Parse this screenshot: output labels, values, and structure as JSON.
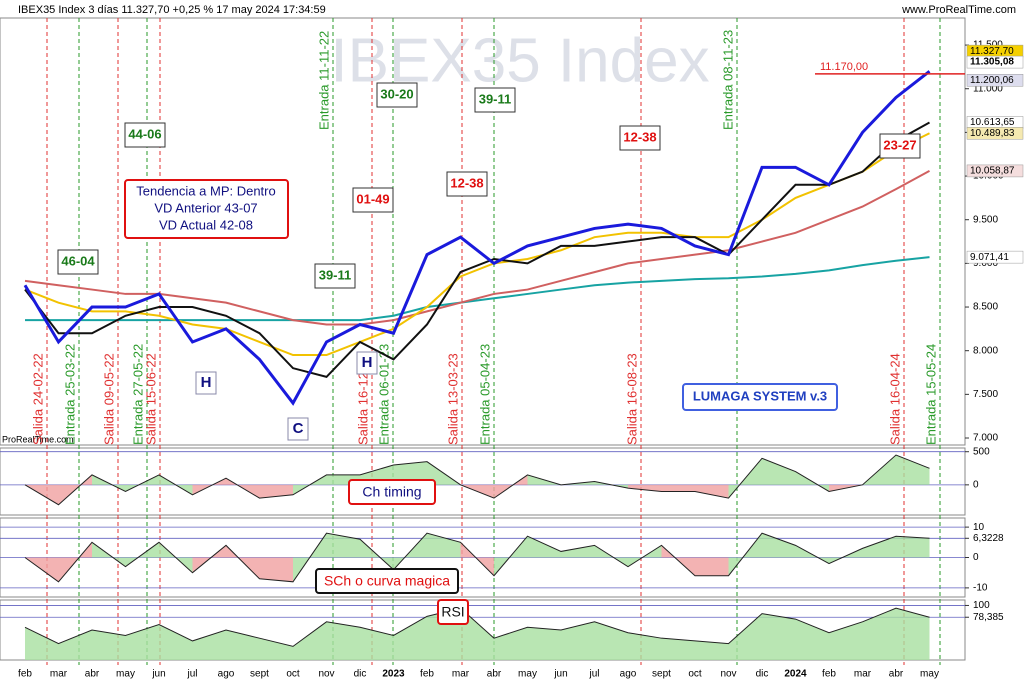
{
  "header": {
    "title": "IBEX35 Index 3 días 11.327,70 +0,25 % 17 may 2024 17:34:59",
    "site": "www.ProRealTime.com",
    "watermark": "IBEX35 Index",
    "credit": "ProRealTime.com"
  },
  "chart_data": [
    {
      "type": "line",
      "categories": [
        "feb",
        "mar",
        "abr",
        "may",
        "jun",
        "jul",
        "ago",
        "sept",
        "oct",
        "nov",
        "dic",
        "2023",
        "feb",
        "mar",
        "abr",
        "may",
        "jun",
        "jul",
        "ago",
        "sept",
        "oct",
        "nov",
        "dic",
        "2024",
        "feb",
        "mar",
        "abr",
        "may"
      ],
      "ylim": [
        6920,
        11810
      ],
      "yticks": [
        {
          "value": 11500,
          "label": "11.500"
        },
        {
          "value": 11000,
          "label": "11.000"
        },
        {
          "value": 10500,
          "label": "10.500"
        },
        {
          "value": 10000,
          "label": "10.000"
        },
        {
          "value": 9500,
          "label": "9.500"
        },
        {
          "value": 9000,
          "label": "9.000"
        },
        {
          "value": 8500,
          "label": "8.500"
        },
        {
          "value": 8000,
          "label": "8.000"
        },
        {
          "value": 7500,
          "label": "7.500"
        },
        {
          "value": 7000,
          "label": "7.000"
        }
      ],
      "series": [
        {
          "color": "#17a3a3",
          "values": [
            8350,
            8350,
            8350,
            8350,
            8350,
            8350,
            8350,
            8350,
            8350,
            8350,
            8350,
            8400,
            8500,
            8550,
            8600,
            8650,
            8700,
            8750,
            8780,
            8800,
            8820,
            8830,
            8850,
            8880,
            8920,
            8980,
            9030,
            9071.41
          ]
        },
        {
          "color": "#d06060",
          "values": [
            8800,
            8750,
            8700,
            8650,
            8650,
            8600,
            8550,
            8450,
            8350,
            8300,
            8300,
            8350,
            8450,
            8550,
            8650,
            8700,
            8800,
            8900,
            9000,
            9050,
            9100,
            9150,
            9250,
            9350,
            9500,
            9650,
            9850,
            10058.87
          ]
        },
        {
          "color": "#f2c200",
          "values": [
            8700,
            8550,
            8450,
            8450,
            8400,
            8300,
            8250,
            8100,
            7950,
            7950,
            8100,
            8250,
            8500,
            8850,
            9000,
            9050,
            9150,
            9300,
            9350,
            9350,
            9300,
            9300,
            9500,
            9750,
            9900,
            10050,
            10300,
            10489.83
          ]
        },
        {
          "color": "#111111",
          "values": [
            8700,
            8200,
            8200,
            8400,
            8500,
            8500,
            8400,
            8200,
            7800,
            7700,
            8100,
            7900,
            8300,
            8900,
            9050,
            9000,
            9200,
            9200,
            9250,
            9300,
            9300,
            9100,
            9500,
            9900,
            9900,
            10050,
            10400,
            10613.65
          ]
        },
        {
          "color": "#1a1adc",
          "values": [
            8750,
            8100,
            8500,
            8500,
            8650,
            8100,
            8250,
            7900,
            7400,
            8100,
            8300,
            8200,
            9100,
            9300,
            9000,
            9200,
            9300,
            9400,
            9450,
            9400,
            9200,
            9100,
            10100,
            10100,
            9900,
            10500,
            10900,
            11200.06
          ]
        }
      ],
      "price_labels": [
        {
          "value": 11327.7,
          "label": "11.327,70"
        },
        {
          "value": 11305.08,
          "label": "11.305,08"
        },
        {
          "value": 11200.06,
          "label": "11.200,06"
        },
        {
          "value": 10613.65,
          "label": "10.613,65"
        },
        {
          "value": 10489.83,
          "label": "10.489,83"
        },
        {
          "value": 10058.87,
          "label": "10.058,87"
        },
        {
          "value": 9071.41,
          "label": "9.071,41"
        }
      ],
      "level": {
        "value": 11170,
        "label": "11.170,00"
      },
      "events": [
        "Salida 24-02-22",
        "Entrada 25-03-22",
        "Salida 09-05-22",
        "Entrada 27-05-22",
        "Salida 15-06-22",
        "Entrada 11-11-22",
        "Salida 16-12-22",
        "Entrada 06-01-23",
        "Salida 13-03-23",
        "Entrada 05-04-23",
        "Salida 16-08-23",
        "Entrada 08-11-23",
        "Salida 16-04-24",
        "Entrada 15-05-24"
      ],
      "boxes": [
        "44-06",
        "30-20",
        "39-11",
        "46-04",
        "01-49",
        "12-38",
        "12-38",
        "23-27",
        "39-11"
      ],
      "info": [
        "Tendencia a MP: Dentro",
        "VD Anterior 43-07",
        "VD Actual 42-08"
      ],
      "marks": [
        "H",
        "H",
        "C"
      ],
      "system": "LUMAGA SYSTEM v.3"
    },
    {
      "type": "area",
      "title": "Ch timing",
      "ylim": [
        -455,
        556
      ],
      "yticks": [
        500,
        0
      ],
      "values": [
        0,
        -300,
        150,
        -100,
        150,
        -150,
        100,
        -200,
        -150,
        150,
        150,
        300,
        350,
        0,
        -200,
        150,
        0,
        50,
        -50,
        -100,
        -100,
        -200,
        400,
        200,
        -100,
        0,
        450,
        250
      ]
    },
    {
      "type": "area",
      "title": "SCh o curva magica",
      "ylim": [
        -13,
        13
      ],
      "yticks": [
        10,
        {
          "value": 6.3228,
          "label": "6,3228"
        },
        0,
        -10
      ],
      "values": [
        0,
        -8,
        5,
        -3,
        5,
        -5,
        4,
        -7,
        -8,
        8,
        6,
        -4,
        8,
        5,
        -6,
        7,
        2,
        4,
        -3,
        4,
        -6,
        -6,
        8,
        4,
        -2,
        3,
        7,
        6.3228
      ]
    },
    {
      "type": "area",
      "title": "RSI",
      "ylim": [
        0,
        110
      ],
      "yticks": [
        100,
        {
          "value": 78.385,
          "label": "78,385"
        }
      ],
      "values": [
        60,
        30,
        55,
        45,
        65,
        35,
        55,
        40,
        25,
        70,
        60,
        45,
        80,
        95,
        40,
        60,
        55,
        70,
        50,
        40,
        35,
        30,
        85,
        75,
        50,
        70,
        95,
        78.385
      ]
    }
  ]
}
